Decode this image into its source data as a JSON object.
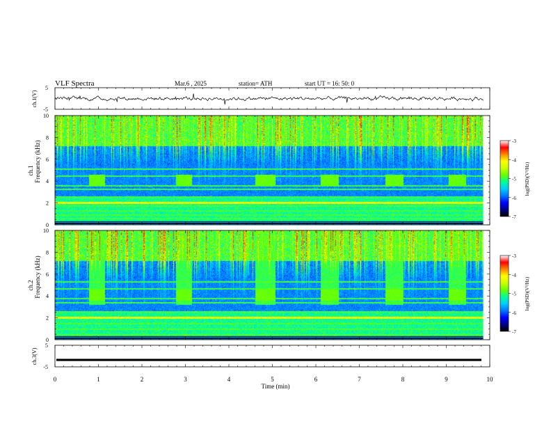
{
  "header": {
    "title": "VLF  Spectra",
    "date": "Mar.6  , 2025",
    "station": "station= ATH",
    "start": "start  UT  =    16: 50: 0"
  },
  "colors": {
    "axis": "#000000",
    "trace": "#000000",
    "colormap": [
      "#000000",
      "#000088",
      "#0000ff",
      "#0077ff",
      "#00ccff",
      "#00ff99",
      "#66ff00",
      "#ccff00",
      "#ffff00",
      "#ff8800",
      "#ff0000",
      "#ffffff"
    ]
  },
  "chart_data": [
    {
      "type": "line",
      "panel": "ch1",
      "ylabel": "ch.1(V)",
      "ylim": [
        -5,
        5
      ],
      "yticks": [
        "5",
        "-5"
      ],
      "xlim": [
        0,
        10
      ],
      "series": [
        {
          "values": "noisy waveform near 0 V, amplitude about ±1 V"
        }
      ]
    },
    {
      "type": "heatmap",
      "panel": "ch1-spectrogram",
      "ylabel": [
        "ch.1",
        "Frequency  (kHz)"
      ],
      "ylim": [
        0,
        10
      ],
      "yticks": [
        "0",
        "2",
        "4",
        "6",
        "8",
        "10"
      ],
      "xlim": [
        0,
        10
      ],
      "colorbar": {
        "label": "log(PSD)(V²/Hz)",
        "ticks": [
          "-3",
          "-4",
          "-5",
          "-6",
          "-7"
        ],
        "range": [
          -7,
          -3
        ]
      },
      "bursts_min": [
        [
          0.77,
          1.15
        ],
        [
          2.77,
          3.15
        ],
        [
          4.6,
          5.07
        ],
        [
          6.1,
          6.52
        ],
        [
          7.6,
          8.0
        ],
        [
          9.05,
          9.45
        ]
      ],
      "bands_khz": [
        0.3,
        0.6,
        0.9,
        1.3,
        1.75,
        2.05,
        2.6,
        3.3,
        3.6,
        4.5,
        5.1
      ]
    },
    {
      "type": "heatmap",
      "panel": "ch2-spectrogram",
      "ylabel": [
        "ch.2",
        "Frequency  (kHz)"
      ],
      "ylim": [
        0,
        10
      ],
      "yticks": [
        "0",
        "2",
        "4",
        "6",
        "8",
        "10"
      ],
      "xlim": [
        0,
        10
      ],
      "colorbar": {
        "label": "log(PSD)(V²/Hz)",
        "ticks": [
          "-3",
          "-4",
          "-5",
          "-6",
          "-7"
        ],
        "range": [
          -7,
          -3
        ]
      },
      "bursts_min": [
        [
          0.77,
          1.15
        ],
        [
          2.77,
          3.15
        ],
        [
          4.6,
          5.07
        ],
        [
          6.1,
          6.52
        ],
        [
          7.6,
          8.0
        ],
        [
          9.05,
          9.45
        ]
      ],
      "bands_khz": [
        0.5,
        1.0,
        1.5,
        2.05,
        2.6,
        3.4,
        3.8,
        4.7,
        5.3
      ]
    },
    {
      "type": "line",
      "panel": "ch3",
      "ylabel": "ch.3(V)",
      "ylim": [
        -5,
        5
      ],
      "yticks": [
        "5",
        "-5"
      ],
      "xlim": [
        0,
        10
      ],
      "series": [
        {
          "values": "flat line at about -1.8 V"
        }
      ],
      "level_v": -1.8
    }
  ],
  "xaxis": {
    "label": "Time  (min)",
    "ticks": [
      "0",
      "1",
      "2",
      "3",
      "4",
      "5",
      "6",
      "7",
      "8",
      "9",
      "10"
    ]
  }
}
